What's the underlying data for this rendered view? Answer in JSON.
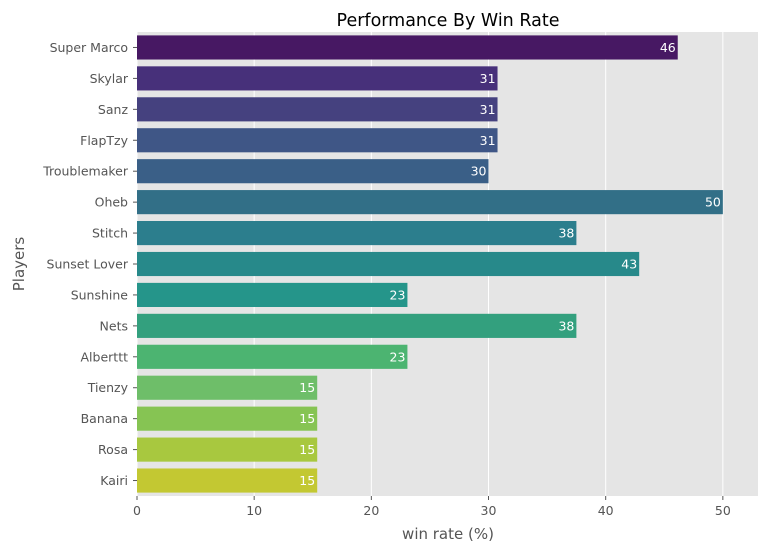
{
  "chart_data": {
    "type": "bar",
    "orientation": "horizontal",
    "title": "Performance By Win Rate",
    "xlabel": "win rate (%)",
    "ylabel": "Players",
    "xlim": [
      0,
      53
    ],
    "xticks": [
      0,
      10,
      20,
      30,
      40,
      50
    ],
    "grid": true,
    "background": "#e5e5e5",
    "categories": [
      "Super Marco",
      "Skylar",
      "Sanz",
      "FlapTzy",
      "Troublemaker",
      "Oheb",
      "Stitch",
      "Sunset Lover",
      "Sunshine",
      "Nets",
      "Alberttt",
      "Tienzy",
      "Banana",
      "Rosa",
      "Kairi"
    ],
    "values": [
      46.15,
      30.77,
      30.77,
      30.77,
      30,
      50,
      37.5,
      42.86,
      23.08,
      37.5,
      23.08,
      15.38,
      15.38,
      15.38,
      15.38
    ],
    "data_labels": [
      "46",
      "31",
      "31",
      "31",
      "30",
      "50",
      "38",
      "43",
      "23",
      "38",
      "23",
      "15",
      "15",
      "15",
      "15"
    ],
    "colors": [
      "#471863",
      "#47307a",
      "#45417f",
      "#3f5686",
      "#3a5f87",
      "#326f87",
      "#2c7e8d",
      "#27898a",
      "#25958a",
      "#33a07e",
      "#4cb471",
      "#6ebe69",
      "#86c453",
      "#a8c83f",
      "#c3c832"
    ]
  }
}
